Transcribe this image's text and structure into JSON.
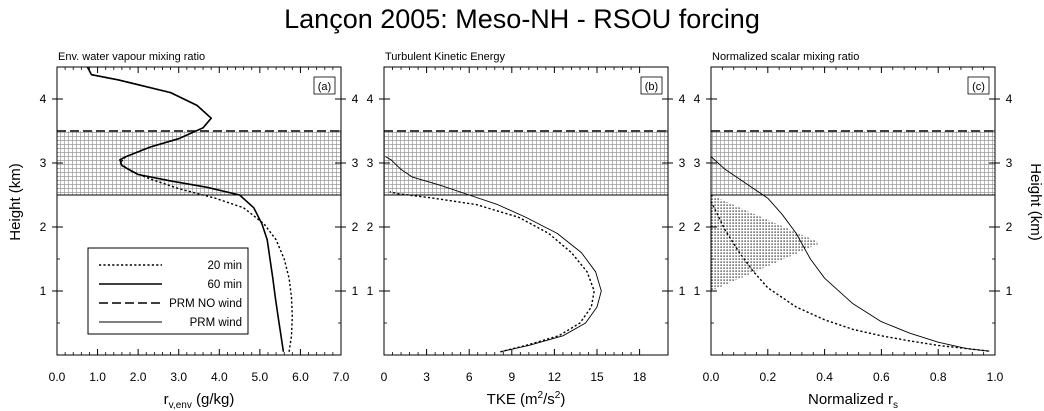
{
  "figure": {
    "title": "Lançon 2005: Meso-NH - RSOU forcing",
    "left_ylabel": "Height (km)",
    "right_ylabel": "Height (km)"
  },
  "chart_data": [
    {
      "type": "line",
      "title": "Env. water vapour mixing ratio",
      "panel_label": "(a)",
      "xlabel_main": "r",
      "xlabel_sub": "v,env",
      "xlabel_unit": " (g/kg)",
      "xlim": [
        0,
        7
      ],
      "ylim": [
        0,
        4.5
      ],
      "x_ticks": [
        0,
        1,
        2,
        3,
        4,
        5,
        6,
        7
      ],
      "x_tick_labels": [
        "0.0",
        "1.0",
        "2.0",
        "3.0",
        "4.0",
        "5.0",
        "6.0",
        "7.0"
      ],
      "y_ticks": [
        1,
        2,
        3,
        4
      ],
      "y_tick_labels": [
        "1",
        "2",
        "3",
        "4"
      ],
      "shaded_band_y": [
        2.5,
        3.5
      ],
      "series": [
        {
          "name": "20 min",
          "style": "dotted",
          "points": [
            [
              5.72,
              0.05
            ],
            [
              5.78,
              0.3
            ],
            [
              5.8,
              0.6
            ],
            [
              5.78,
              0.9
            ],
            [
              5.72,
              1.2
            ],
            [
              5.6,
              1.5
            ],
            [
              5.4,
              1.8
            ],
            [
              5.1,
              2.05
            ],
            [
              4.6,
              2.3
            ],
            [
              3.9,
              2.45
            ],
            [
              3.0,
              2.6
            ],
            [
              2.3,
              2.75
            ],
            [
              1.8,
              2.88
            ],
            [
              1.55,
              3.0
            ],
            [
              1.7,
              3.1
            ],
            [
              2.3,
              3.25
            ],
            [
              3.0,
              3.38
            ],
            [
              3.6,
              3.55
            ],
            [
              3.8,
              3.7
            ],
            [
              3.45,
              3.9
            ],
            [
              2.8,
              4.1
            ],
            [
              1.5,
              4.3
            ],
            [
              0.85,
              4.38
            ],
            [
              0.75,
              4.5
            ]
          ]
        },
        {
          "name": "60 min",
          "style": "solid-thick",
          "points": [
            [
              5.58,
              0.05
            ],
            [
              5.52,
              0.3
            ],
            [
              5.45,
              0.6
            ],
            [
              5.38,
              0.9
            ],
            [
              5.32,
              1.2
            ],
            [
              5.25,
              1.5
            ],
            [
              5.18,
              1.8
            ],
            [
              5.05,
              2.05
            ],
            [
              4.85,
              2.3
            ],
            [
              4.5,
              2.5
            ],
            [
              3.7,
              2.62
            ],
            [
              2.8,
              2.72
            ],
            [
              2.0,
              2.82
            ],
            [
              1.6,
              2.96
            ],
            [
              1.55,
              3.05
            ],
            [
              1.7,
              3.1
            ],
            [
              2.3,
              3.25
            ],
            [
              3.0,
              3.38
            ],
            [
              3.6,
              3.55
            ],
            [
              3.8,
              3.7
            ],
            [
              3.45,
              3.9
            ],
            [
              2.8,
              4.1
            ],
            [
              1.5,
              4.3
            ],
            [
              0.85,
              4.38
            ],
            [
              0.75,
              4.5
            ]
          ]
        }
      ],
      "legend_entries": [
        {
          "name": "20 min",
          "style": "dotted"
        },
        {
          "name": "60 min",
          "style": "solid-thick"
        },
        {
          "name": "PRM NO wind",
          "style": "dashed"
        },
        {
          "name": "PRM wind",
          "style": "solid-thin"
        }
      ],
      "legend_position": "lower-left"
    },
    {
      "type": "line",
      "title": "Turbulent Kinetic Energy",
      "panel_label": "(b)",
      "xlabel_main": "TKE (m",
      "xlabel_sup": "2",
      "xlabel_mid": "/s",
      "xlabel_sup2": "2",
      "xlabel_end": ")",
      "xlim": [
        0,
        20
      ],
      "ylim": [
        0,
        4.5
      ],
      "x_ticks": [
        0,
        3,
        6,
        9,
        12,
        15,
        18
      ],
      "x_tick_labels": [
        "0",
        "3",
        "6",
        "9",
        "12",
        "15",
        "18"
      ],
      "y_ticks": [
        1,
        2,
        3,
        4
      ],
      "y_tick_labels": [
        "1",
        "2",
        "3",
        "4"
      ],
      "shaded_band_y": [
        2.5,
        3.5
      ],
      "series": [
        {
          "name": "20 min",
          "style": "dotted",
          "points": [
            [
              8.2,
              0.05
            ],
            [
              10.0,
              0.15
            ],
            [
              12.3,
              0.3
            ],
            [
              13.8,
              0.5
            ],
            [
              14.6,
              0.75
            ],
            [
              14.8,
              1.0
            ],
            [
              14.3,
              1.3
            ],
            [
              13.2,
              1.6
            ],
            [
              11.6,
              1.9
            ],
            [
              9.5,
              2.15
            ],
            [
              6.5,
              2.35
            ],
            [
              3.5,
              2.45
            ],
            [
              1.0,
              2.52
            ],
            [
              0.4,
              2.55
            ]
          ]
        },
        {
          "name": "60 min",
          "style": "solid-thin",
          "points": [
            [
              8.2,
              0.05
            ],
            [
              10.2,
              0.15
            ],
            [
              12.6,
              0.3
            ],
            [
              14.2,
              0.5
            ],
            [
              15.0,
              0.75
            ],
            [
              15.3,
              1.0
            ],
            [
              14.9,
              1.3
            ],
            [
              13.9,
              1.6
            ],
            [
              12.2,
              1.9
            ],
            [
              10.0,
              2.15
            ],
            [
              8.0,
              2.35
            ],
            [
              6.0,
              2.5
            ],
            [
              4.0,
              2.65
            ],
            [
              2.0,
              2.78
            ],
            [
              1.2,
              2.9
            ],
            [
              0.5,
              3.05
            ],
            [
              0.1,
              3.1
            ]
          ]
        }
      ]
    },
    {
      "type": "line",
      "title": "Normalized scalar mixing ratio",
      "panel_label": "(c)",
      "xlabel_main": "Normalized r",
      "xlabel_sub": "s",
      "xlim": [
        0,
        1
      ],
      "ylim": [
        0,
        4.5
      ],
      "x_ticks": [
        0,
        0.2,
        0.4,
        0.6,
        0.8,
        1.0
      ],
      "x_tick_labels": [
        "0.0",
        "0.2",
        "0.4",
        "0.6",
        "0.8",
        "1.0"
      ],
      "y_ticks": [
        1,
        2,
        3,
        4
      ],
      "y_tick_labels": [
        "1",
        "2",
        "3",
        "4"
      ],
      "shaded_band_y": [
        2.5,
        3.5
      ],
      "stippled_polygon": [
        [
          0.0,
          2.5
        ],
        [
          0.385,
          1.75
        ],
        [
          0.0,
          1.0
        ]
      ],
      "series": [
        {
          "name": "20 min",
          "style": "dotted",
          "points": [
            [
              0.0,
              2.4
            ],
            [
              0.05,
              1.95
            ],
            [
              0.1,
              1.6
            ],
            [
              0.15,
              1.3
            ],
            [
              0.2,
              1.05
            ],
            [
              0.3,
              0.75
            ],
            [
              0.4,
              0.55
            ],
            [
              0.5,
              0.4
            ],
            [
              0.6,
              0.3
            ],
            [
              0.7,
              0.22
            ],
            [
              0.8,
              0.15
            ],
            [
              0.9,
              0.1
            ],
            [
              0.98,
              0.06
            ]
          ]
        },
        {
          "name": "60 min",
          "style": "solid-thin",
          "points": [
            [
              0.0,
              3.1
            ],
            [
              0.05,
              2.9
            ],
            [
              0.1,
              2.75
            ],
            [
              0.15,
              2.6
            ],
            [
              0.2,
              2.45
            ],
            [
              0.25,
              2.2
            ],
            [
              0.3,
              1.9
            ],
            [
              0.35,
              1.5
            ],
            [
              0.4,
              1.2
            ],
            [
              0.5,
              0.8
            ],
            [
              0.6,
              0.52
            ],
            [
              0.7,
              0.34
            ],
            [
              0.8,
              0.2
            ],
            [
              0.9,
              0.1
            ],
            [
              0.98,
              0.06
            ]
          ]
        }
      ]
    }
  ]
}
